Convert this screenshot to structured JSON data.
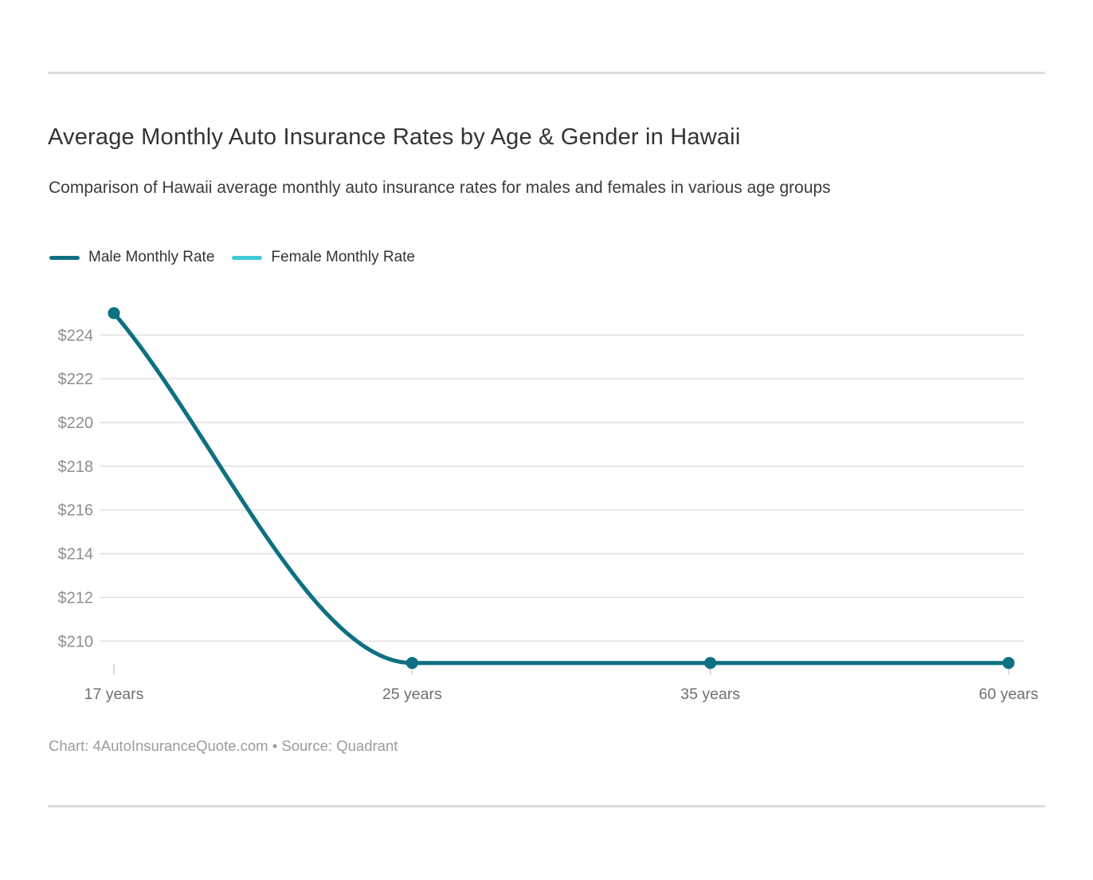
{
  "page": {
    "background": "#ffffff",
    "divider_color": "#dcdcdc"
  },
  "header": {
    "title": "Average Monthly Auto Insurance Rates by Age & Gender in Hawaii",
    "subtitle": "Comparison of Hawaii average monthly auto insurance rates for males and females in various age groups"
  },
  "legend": {
    "items": [
      {
        "label": "Male Monthly Rate",
        "color": "#0e7080"
      },
      {
        "label": "Female Monthly Rate",
        "color": "#3fc8d8"
      }
    ]
  },
  "chart_data": {
    "type": "line",
    "title": "Average Monthly Auto Insurance Rates by Age & Gender in Hawaii",
    "subtitle": "Comparison of Hawaii average monthly auto insurance rates for males and females in various age groups",
    "categories": [
      "17 years",
      "25 years",
      "35 years",
      "60 years"
    ],
    "series": [
      {
        "name": "Male Monthly Rate",
        "color": "#0e7080",
        "values": [
          225,
          209,
          209,
          209
        ]
      },
      {
        "name": "Female Monthly Rate",
        "color": "#3fc8d8",
        "values": [
          225,
          209,
          209,
          209
        ]
      }
    ],
    "y_tick_prefix": "$",
    "yticks": [
      210,
      212,
      214,
      216,
      218,
      220,
      222,
      224
    ],
    "ylim": [
      208.5,
      225.5
    ],
    "grid": "horizontal-only",
    "legend_position": "top-left",
    "curve": "monotone",
    "note_overlap": "Female line coincides exactly with male line and is hidden beneath it",
    "gridline_color": "#e0e0e0",
    "x_tick_color": "#cccccc",
    "y_label_color": "#8e8e8e",
    "x_label_color": "#6f6f6f"
  },
  "footer": {
    "text": "Chart: 4AutoInsuranceQuote.com • Source: Quadrant"
  }
}
